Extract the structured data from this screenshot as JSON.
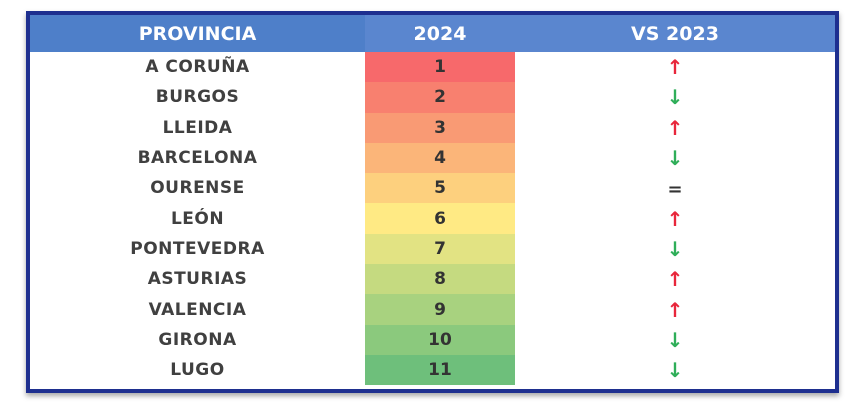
{
  "table": {
    "headers": {
      "province": "PROVINCIA",
      "rank": "2024",
      "comparison": "VS 2023"
    },
    "rows": [
      {
        "province": "A CORUÑA",
        "rank": "1",
        "trend": "up",
        "trend_symbol": "↑",
        "rank_color": "#f7696b"
      },
      {
        "province": "BURGOS",
        "rank": "2",
        "trend": "down",
        "trend_symbol": "↓",
        "rank_color": "#f8806f"
      },
      {
        "province": "LLEIDA",
        "rank": "3",
        "trend": "up",
        "trend_symbol": "↑",
        "rank_color": "#f99a74"
      },
      {
        "province": "BARCELONA",
        "rank": "4",
        "trend": "down",
        "trend_symbol": "↓",
        "rank_color": "#fbb579"
      },
      {
        "province": "OURENSE",
        "rank": "5",
        "trend": "same",
        "trend_symbol": "=",
        "rank_color": "#fdd07e"
      },
      {
        "province": "LEÓN",
        "rank": "6",
        "trend": "up",
        "trend_symbol": "↑",
        "rank_color": "#ffea84"
      },
      {
        "province": "PONTEVEDRA",
        "rank": "7",
        "trend": "down",
        "trend_symbol": "↓",
        "rank_color": "#e2e383"
      },
      {
        "province": "ASTURIAS",
        "rank": "8",
        "trend": "up",
        "trend_symbol": "↑",
        "rank_color": "#c5da80"
      },
      {
        "province": "VALENCIA",
        "rank": "9",
        "trend": "up",
        "trend_symbol": "↑",
        "rank_color": "#a8d27f"
      },
      {
        "province": "GIRONA",
        "rank": "10",
        "trend": "down",
        "trend_symbol": "↓",
        "rank_color": "#8bc97d"
      },
      {
        "province": "LUGO",
        "rank": "11",
        "trend": "down",
        "trend_symbol": "↓",
        "rank_color": "#6ebf7b"
      }
    ]
  },
  "colors": {
    "frame_border": "#1e2f8f",
    "header_bg": "#5a86cf",
    "trend_up": "#e8263b",
    "trend_down": "#2fae59",
    "trend_same": "#333333"
  },
  "icons": {
    "up": "arrow-up-icon",
    "down": "arrow-down-icon",
    "same": "equal-icon"
  }
}
